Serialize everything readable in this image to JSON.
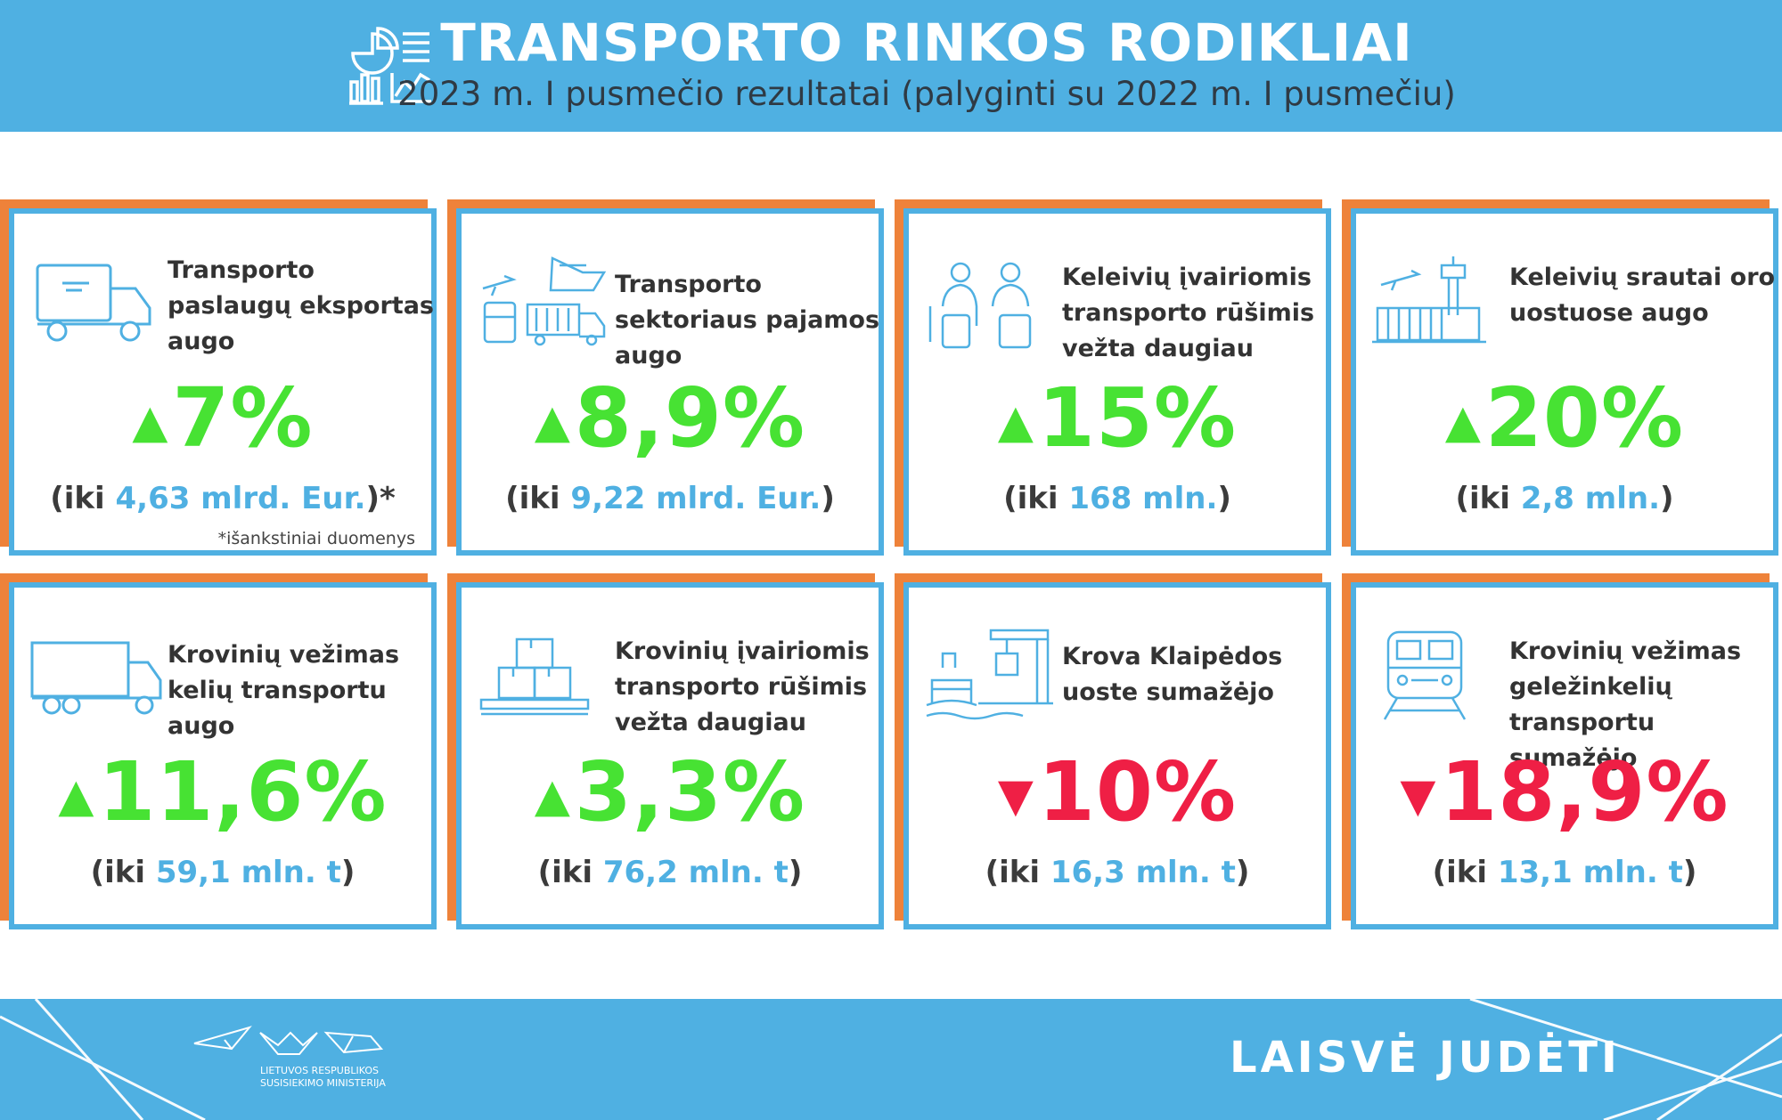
{
  "header": {
    "title": "TRANSPORTO RINKOS RODIKLIAI",
    "subtitle": "2023 m. I pusmečio rezultatai (palyginti su 2022 m. I pusmečiu)",
    "icon": "statistics-icon"
  },
  "cards": [
    {
      "title": "Transporto paslaugų eksportas augo",
      "direction": "up",
      "arrow": "▲",
      "value": "7%",
      "detail_prefix": "(iki ",
      "detail_value": "4,63 mlrd. Eur.",
      "detail_suffix": ")*",
      "note": "*išankstiniai duomenys",
      "icon": "truck-icon"
    },
    {
      "title": "Transporto sektoriaus pajamos augo",
      "direction": "up",
      "arrow": "▲",
      "value": "8,9%",
      "detail_prefix": "(iki ",
      "detail_value": "9,22 mlrd. Eur.",
      "detail_suffix": ")",
      "note": "",
      "icon": "multimodal-transport-icon"
    },
    {
      "title": "Keleivių įvairiomis transporto rūšimis vežta daugiau",
      "direction": "up",
      "arrow": "▲",
      "value": "15%",
      "detail_prefix": "(iki ",
      "detail_value": "168 mln.",
      "detail_suffix": ")",
      "note": "",
      "icon": "passengers-icon"
    },
    {
      "title": "Keleivių srautai oro uostuose augo",
      "direction": "up",
      "arrow": "▲",
      "value": "20%",
      "detail_prefix": "(iki ",
      "detail_value": "2,8 mln.",
      "detail_suffix": ")",
      "note": "",
      "icon": "airport-icon"
    },
    {
      "title": "Krovinių vežimas kelių transportu augo",
      "direction": "up",
      "arrow": "▲",
      "value": "11,6%",
      "detail_prefix": "(iki ",
      "detail_value": "59,1 mln. t",
      "detail_suffix": ")",
      "note": "",
      "icon": "lorry-icon"
    },
    {
      "title": "Krovinių įvairiomis transporto rūšimis vežta daugiau",
      "direction": "up",
      "arrow": "▲",
      "value": "3,3%",
      "detail_prefix": "(iki ",
      "detail_value": "76,2 mln. t",
      "detail_suffix": ")",
      "note": "",
      "icon": "cargo-boxes-icon"
    },
    {
      "title": "Krova Klaipėdos uoste sumažėjo",
      "direction": "down",
      "arrow": "▼",
      "value": "10%",
      "detail_prefix": "(iki ",
      "detail_value": "16,3 mln. t",
      "detail_suffix": ")",
      "note": "",
      "icon": "port-icon"
    },
    {
      "title": "Krovinių vežimas geležinkelių transportu sumažėjo",
      "direction": "down",
      "arrow": "▼",
      "value": "18,9%",
      "detail_prefix": "(iki ",
      "detail_value": "13,1 mln. t",
      "detail_suffix": ")",
      "note": "",
      "icon": "train-icon"
    }
  ],
  "footer": {
    "logo_line1": "LIETUVOS RESPUBLIKOS",
    "logo_line2": "SUSISIEKIMO MINISTERIJA",
    "slogan": "LAISVĖ JUDĖTI",
    "logo_icon": "paper-boats-logo-icon"
  },
  "colors": {
    "primary_blue": "#4fb0e2",
    "accent_orange": "#ee823a",
    "increase_green": "#47e233",
    "decrease_red": "#ef1f45"
  }
}
